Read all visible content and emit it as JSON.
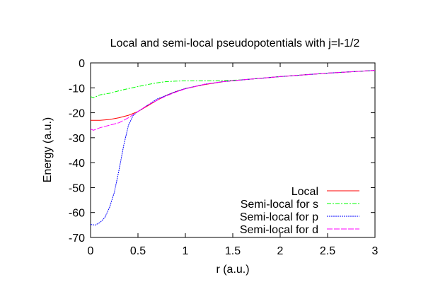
{
  "chart_data": {
    "type": "line",
    "title": "Local and semi-local pseudopotentials with j=l-1/2",
    "xlabel": "r (a.u.)",
    "ylabel": "Energy (a.u.)",
    "xlim": [
      0,
      3
    ],
    "ylim": [
      -70,
      0
    ],
    "xticks": [
      "0",
      "0.5",
      "1",
      "1.5",
      "2",
      "2.5",
      "3"
    ],
    "yticks": [
      "0",
      "-10",
      "-20",
      "-30",
      "-40",
      "-50",
      "-60",
      "-70"
    ],
    "grid": false,
    "legend": "bottom-right",
    "series": [
      {
        "name": "Local",
        "color": "#ff0000",
        "dash": "solid",
        "x": [
          0,
          0.1,
          0.2,
          0.3,
          0.4,
          0.5,
          0.6,
          0.7,
          0.8,
          0.9,
          1.0,
          1.2,
          1.4,
          1.6,
          2.0,
          2.5,
          3.0
        ],
        "y": [
          -23,
          -23,
          -22.7,
          -22,
          -21,
          -19.5,
          -17.3,
          -15,
          -13,
          -11.5,
          -10.3,
          -8.7,
          -7.5,
          -6.8,
          -5.5,
          -4.1,
          -3
        ]
      },
      {
        "name": "Semi-local for s",
        "color": "#00ff00",
        "dash": "dashdot",
        "x": [
          0,
          0.03,
          0.1,
          0.2,
          0.3,
          0.4,
          0.5,
          0.6,
          0.7,
          0.8,
          0.9,
          1.0,
          1.2,
          1.4,
          1.6,
          2.0,
          2.5,
          3.0
        ],
        "y": [
          -13.5,
          -14,
          -12.8,
          -12.2,
          -11.2,
          -10.3,
          -9.5,
          -8.7,
          -8,
          -7.5,
          -7.3,
          -7.2,
          -7.2,
          -7.1,
          -6.8,
          -5.5,
          -4.1,
          -3
        ]
      },
      {
        "name": "Semi-local for p",
        "color": "#0000ff",
        "dash": "dotted",
        "x": [
          0,
          0.05,
          0.1,
          0.15,
          0.2,
          0.25,
          0.3,
          0.35,
          0.4,
          0.45,
          0.5,
          0.6,
          0.7,
          0.8,
          0.9,
          1.0,
          1.2,
          1.4,
          1.6,
          2.0,
          2.5,
          3.0
        ],
        "y": [
          -64.8,
          -65,
          -64,
          -62,
          -58,
          -52,
          -43,
          -33,
          -25,
          -21,
          -19.5,
          -17,
          -14.5,
          -13,
          -11.5,
          -10.3,
          -8.6,
          -7.5,
          -6.8,
          -5.5,
          -4.1,
          -3
        ]
      },
      {
        "name": "Semi-local for d",
        "color": "#ff00ff",
        "dash": "longdash",
        "x": [
          0,
          0.03,
          0.1,
          0.2,
          0.3,
          0.4,
          0.5,
          0.6,
          0.7,
          0.8,
          0.9,
          1.0,
          1.2,
          1.4,
          1.6,
          2.0,
          2.5,
          3.0
        ],
        "y": [
          -26.5,
          -27,
          -26,
          -25,
          -24,
          -22,
          -19.5,
          -17,
          -15,
          -13.2,
          -11.7,
          -10.4,
          -8.6,
          -7.5,
          -6.8,
          -5.5,
          -4.1,
          -3
        ]
      }
    ]
  }
}
